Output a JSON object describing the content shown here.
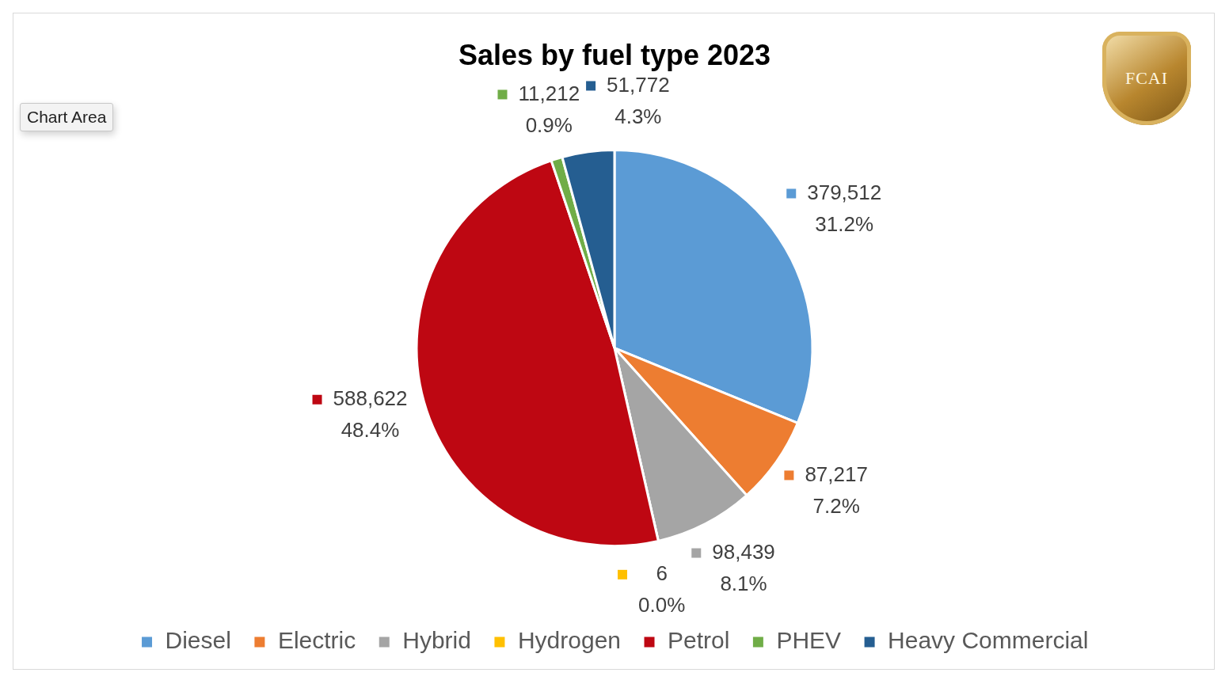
{
  "chart_data": {
    "type": "pie",
    "title": "Sales by fuel type 2023",
    "categories": [
      "Diesel",
      "Electric",
      "Hybrid",
      "Hydrogen",
      "Petrol",
      "PHEV",
      "Heavy Commercial"
    ],
    "values": [
      379512,
      87217,
      98439,
      6,
      588622,
      11212,
      51772
    ],
    "value_labels": [
      "379,512",
      "87,217",
      "98,439",
      "6",
      "588,622",
      "11,212",
      "51,772"
    ],
    "percentages": [
      31.2,
      7.2,
      8.1,
      0.0,
      48.4,
      0.9,
      4.3
    ],
    "percent_labels": [
      "31.2%",
      "7.2%",
      "8.1%",
      "0.0%",
      "48.4%",
      "0.9%",
      "4.3%"
    ],
    "colors": [
      "#5b9bd5",
      "#ed7d31",
      "#a5a5a5",
      "#ffc000",
      "#be0712",
      "#70ad47",
      "#255e91"
    ],
    "legend": "bottom",
    "data_labels": true,
    "annotations": [
      "Chart Area",
      "FCAI"
    ]
  }
}
